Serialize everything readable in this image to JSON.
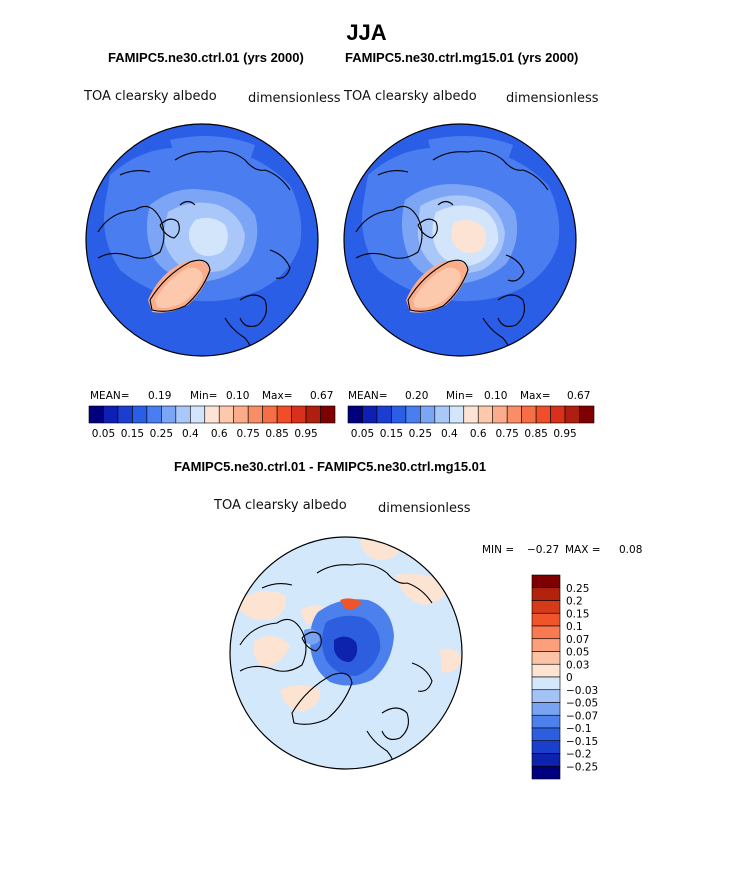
{
  "page_title": "JJA",
  "panels": [
    {
      "case_name": "FAMIPC5.ne30.ctrl.01 (yrs 2000)",
      "variable_label": "TOA clearsky albedo",
      "units_label": "dimensionless",
      "stats": {
        "mean_label": "MEAN=",
        "mean": "0.19",
        "min_label": "Min=",
        "min": "0.10",
        "max_label": "Max=",
        "max": "0.67"
      }
    },
    {
      "case_name": "FAMIPC5.ne30.ctrl.mg15.01 (yrs 2000)",
      "variable_label": "TOA clearsky albedo",
      "units_label": "dimensionless",
      "stats": {
        "mean_label": "MEAN=",
        "mean": "0.20",
        "min_label": "Min=",
        "min": "0.10",
        "max_label": "Max=",
        "max": "0.67"
      }
    }
  ],
  "difference_panel": {
    "title": "FAMIPC5.ne30.ctrl.01 - FAMIPC5.ne30.ctrl.mg15.01",
    "variable_label": "TOA clearsky albedo",
    "units_label": "dimensionless",
    "min_label": "MIN =",
    "min": "−0.27",
    "max_label": "MAX =",
    "max": "0.08"
  },
  "chart_data": [
    {
      "type": "heatmap",
      "projection": "north polar stereographic",
      "title": "FAMIPC5.ne30.ctrl.01 (yrs 2000)",
      "colorbar": {
        "orientation": "horizontal",
        "levels": [
          0.05,
          0.1,
          0.15,
          0.2,
          0.25,
          0.3,
          0.35,
          0.4,
          0.5,
          0.6,
          0.65,
          0.7,
          0.75,
          0.8,
          0.85,
          0.9,
          0.95
        ],
        "tick_labels": [
          "0.05",
          "0.15",
          "0.25",
          "0.4",
          "0.6",
          "0.75",
          "0.85",
          "0.95"
        ],
        "colors": [
          "#00007f",
          "#0d1fb4",
          "#1c3ed0",
          "#2a5ee6",
          "#4a7df0",
          "#7ca5f5",
          "#a9c7f8",
          "#d2e5fb",
          "#fce3d4",
          "#fdc9ad",
          "#fbad8b",
          "#f98e66",
          "#f56e45",
          "#ef4e28",
          "#d8301a",
          "#b01e0f",
          "#7f0000"
        ]
      },
      "mean": 0.19,
      "min": 0.1,
      "max": 0.67
    },
    {
      "type": "heatmap",
      "projection": "north polar stereographic",
      "title": "FAMIPC5.ne30.ctrl.mg15.01 (yrs 2000)",
      "colorbar": {
        "orientation": "horizontal",
        "levels": [
          0.05,
          0.1,
          0.15,
          0.2,
          0.25,
          0.3,
          0.35,
          0.4,
          0.5,
          0.6,
          0.65,
          0.7,
          0.75,
          0.8,
          0.85,
          0.9,
          0.95
        ],
        "tick_labels": [
          "0.05",
          "0.15",
          "0.25",
          "0.4",
          "0.6",
          "0.75",
          "0.85",
          "0.95"
        ],
        "colors": [
          "#00007f",
          "#0d1fb4",
          "#1c3ed0",
          "#2a5ee6",
          "#4a7df0",
          "#7ca5f5",
          "#a9c7f8",
          "#d2e5fb",
          "#fce3d4",
          "#fdc9ad",
          "#fbad8b",
          "#f98e66",
          "#f56e45",
          "#ef4e28",
          "#d8301a",
          "#b01e0f",
          "#7f0000"
        ]
      },
      "mean": 0.2,
      "min": 0.1,
      "max": 0.67
    },
    {
      "type": "heatmap",
      "projection": "north polar stereographic",
      "title": "FAMIPC5.ne30.ctrl.01 - FAMIPC5.ne30.ctrl.mg15.01",
      "colorbar": {
        "orientation": "vertical",
        "tick_labels": [
          "0.25",
          "0.2",
          "0.15",
          "0.1",
          "0.07",
          "0.05",
          "0.03",
          "0",
          "−0.03",
          "−0.05",
          "−0.07",
          "−0.1",
          "−0.15",
          "−0.2",
          "−0.25"
        ],
        "colors": [
          "#7f0000",
          "#b2220d",
          "#d73a1b",
          "#f0542a",
          "#f97a52",
          "#fb9f7c",
          "#fcc2a6",
          "#fde3d2",
          "#d4e8fb",
          "#a3c3f6",
          "#7aa4f2",
          "#4c80ec",
          "#2d5ee0",
          "#1b3fcd",
          "#0d22ad",
          "#00007f"
        ]
      },
      "min": -0.27,
      "max": 0.08
    }
  ]
}
